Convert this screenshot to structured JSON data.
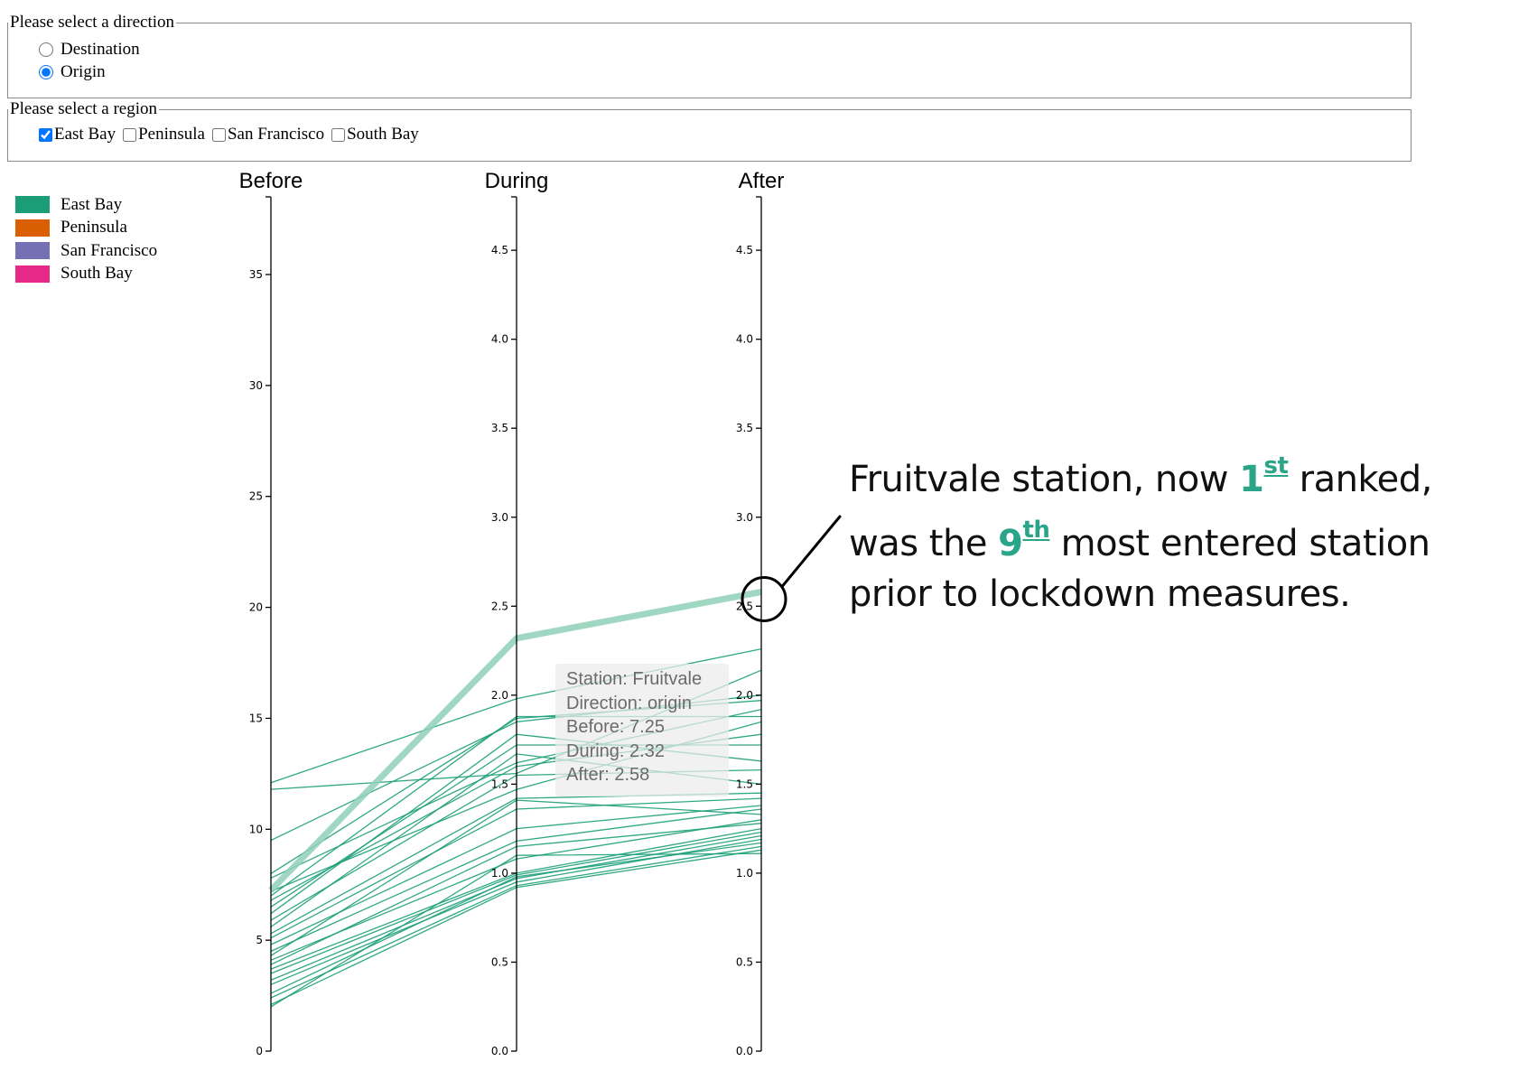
{
  "direction_form": {
    "legend": "Please select a direction",
    "options": [
      {
        "label": "Destination",
        "checked": false
      },
      {
        "label": "Origin",
        "checked": true
      }
    ]
  },
  "region_form": {
    "legend": "Please select a region",
    "options": [
      {
        "label": "East Bay",
        "checked": true
      },
      {
        "label": "Peninsula",
        "checked": false
      },
      {
        "label": "San Francisco",
        "checked": false
      },
      {
        "label": "South Bay",
        "checked": false
      }
    ]
  },
  "legend": [
    {
      "label": "East Bay",
      "color": "#1b9e77"
    },
    {
      "label": "Peninsula",
      "color": "#d95f02"
    },
    {
      "label": "San Francisco",
      "color": "#7570b3"
    },
    {
      "label": "South Bay",
      "color": "#e7298a"
    }
  ],
  "tooltip": {
    "station": "Station: Fruitvale",
    "direction": "Direction: origin",
    "before": "Before: 7.25",
    "during": "During: 2.32",
    "after": "After: 2.58"
  },
  "annotation": {
    "line1_a": "Fruitvale station, now ",
    "line1_hl": "1",
    "line1_sup": "st",
    "line1_b": " ranked,",
    "line2_a": "was the ",
    "line2_hl": "9",
    "line2_sup": "th",
    "line2_b": " most entered station",
    "line3": "prior to lockdown measures."
  },
  "chart_data": {
    "type": "parallel_coordinates",
    "axes": [
      {
        "name": "Before",
        "domain": [
          0,
          38.5
        ],
        "ticks": [
          0,
          5,
          10,
          15,
          20,
          25,
          30,
          35
        ],
        "tick_labels": [
          "0",
          "5",
          "10",
          "15",
          "20",
          "25",
          "30",
          "35"
        ]
      },
      {
        "name": "During",
        "domain": [
          0,
          4.8
        ],
        "ticks": [
          0,
          0.5,
          1,
          1.5,
          2,
          2.5,
          3,
          3.5,
          4,
          4.5
        ],
        "tick_labels": [
          "0.0",
          "0.5",
          "1.0",
          "1.5",
          "2.0",
          "2.5",
          "3.0",
          "3.5",
          "4.0",
          "4.5"
        ]
      },
      {
        "name": "After",
        "domain": [
          0,
          4.8
        ],
        "ticks": [
          0,
          0.5,
          1,
          1.5,
          2,
          2.5,
          3,
          3.5,
          4,
          4.5
        ],
        "tick_labels": [
          "0.0",
          "0.5",
          "1.0",
          "1.5",
          "2.0",
          "2.5",
          "3.0",
          "3.5",
          "4.0",
          "4.5"
        ]
      }
    ],
    "highlight": {
      "station": "Fruitvale",
      "region": "East Bay",
      "before": 7.25,
      "during": 2.32,
      "after": 2.58
    },
    "series": [
      {
        "region": "East Bay",
        "values": [
          12.1,
          1.98,
          2.26
        ]
      },
      {
        "region": "East Bay",
        "values": [
          11.8,
          1.56,
          2.14
        ]
      },
      {
        "region": "East Bay",
        "values": [
          9.5,
          1.85,
          2.0
        ]
      },
      {
        "region": "East Bay",
        "values": [
          8.0,
          1.87,
          1.97
        ]
      },
      {
        "region": "East Bay",
        "values": [
          7.8,
          1.62,
          1.92
        ]
      },
      {
        "region": "East Bay",
        "values": [
          7.2,
          1.47,
          1.85
        ]
      },
      {
        "region": "East Bay",
        "values": [
          7.0,
          1.88,
          1.88
        ]
      },
      {
        "region": "East Bay",
        "values": [
          6.8,
          1.6,
          1.78
        ]
      },
      {
        "region": "East Bay",
        "values": [
          6.5,
          1.72,
          1.72
        ]
      },
      {
        "region": "East Bay",
        "values": [
          6.2,
          1.78,
          1.63
        ]
      },
      {
        "region": "East Bay",
        "values": [
          5.9,
          1.55,
          1.58
        ]
      },
      {
        "region": "East Bay",
        "values": [
          5.6,
          1.67,
          1.5
        ]
      },
      {
        "region": "East Bay",
        "values": [
          5.3,
          1.42,
          1.45
        ]
      },
      {
        "region": "East Bay",
        "values": [
          5.1,
          1.36,
          1.42
        ]
      },
      {
        "region": "East Bay",
        "values": [
          4.8,
          1.25,
          1.38
        ]
      },
      {
        "region": "East Bay",
        "values": [
          4.5,
          1.18,
          1.36
        ]
      },
      {
        "region": "East Bay",
        "values": [
          4.3,
          1.41,
          1.33
        ]
      },
      {
        "region": "East Bay",
        "values": [
          4.1,
          1.08,
          1.3
        ]
      },
      {
        "region": "East Bay",
        "values": [
          3.9,
          1.15,
          1.28
        ]
      },
      {
        "region": "East Bay",
        "values": [
          3.7,
          1.0,
          1.25
        ]
      },
      {
        "region": "East Bay",
        "values": [
          3.5,
          0.99,
          1.23
        ]
      },
      {
        "region": "East Bay",
        "values": [
          3.2,
          0.97,
          1.21
        ]
      },
      {
        "region": "East Bay",
        "values": [
          3.0,
          0.95,
          1.19
        ]
      },
      {
        "region": "East Bay",
        "values": [
          2.6,
          0.98,
          1.17
        ]
      },
      {
        "region": "East Bay",
        "values": [
          2.4,
          0.93,
          1.15
        ]
      },
      {
        "region": "East Bay",
        "values": [
          2.1,
          0.92,
          1.13
        ]
      },
      {
        "region": "East Bay",
        "values": [
          2.0,
          1.1,
          1.11
        ]
      }
    ]
  }
}
